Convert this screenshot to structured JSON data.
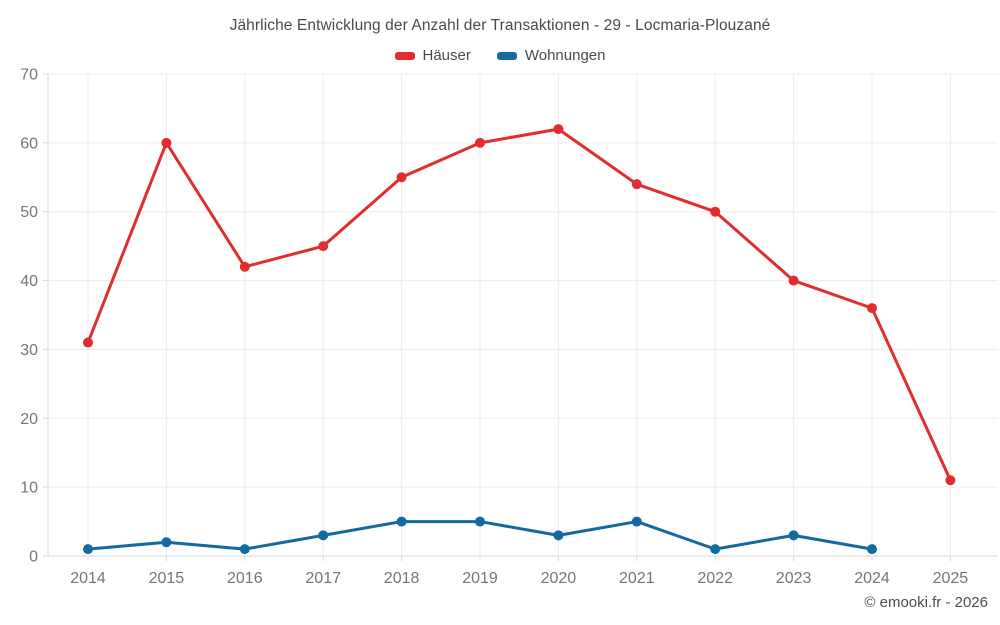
{
  "chart": {
    "title": "Jährliche Entwicklung der Anzahl der Transaktionen - 29 - Locmaria-Plouzané",
    "footer": "© emooki.fr - 2026"
  },
  "chart_data": {
    "type": "line",
    "title": "Jährliche Entwicklung der Anzahl der Transaktionen - 29 - Locmaria-Plouzané",
    "categories": [
      "2014",
      "2015",
      "2016",
      "2017",
      "2018",
      "2019",
      "2020",
      "2021",
      "2022",
      "2023",
      "2024",
      "2025"
    ],
    "series": [
      {
        "name": "Häuser",
        "color": "#e12d2d",
        "values": [
          31,
          60,
          42,
          45,
          55,
          60,
          62,
          54,
          50,
          40,
          36,
          11
        ]
      },
      {
        "name": "Wohnungen",
        "color": "#1469a0",
        "values": [
          1,
          2,
          1,
          3,
          5,
          5,
          3,
          5,
          1,
          3,
          1,
          null
        ]
      }
    ],
    "xlabel": "",
    "ylabel": "",
    "ylim": [
      0,
      70
    ],
    "ytick_step": 10,
    "yticks": [
      0,
      10,
      20,
      30,
      40,
      50,
      60,
      70
    ],
    "grid": true,
    "legend_position": "top",
    "colors": {
      "grid_line": "#ececec",
      "axis_line": "#d9d9d9",
      "tick_label": "#757575",
      "title_text": "#4a4a4a"
    }
  }
}
